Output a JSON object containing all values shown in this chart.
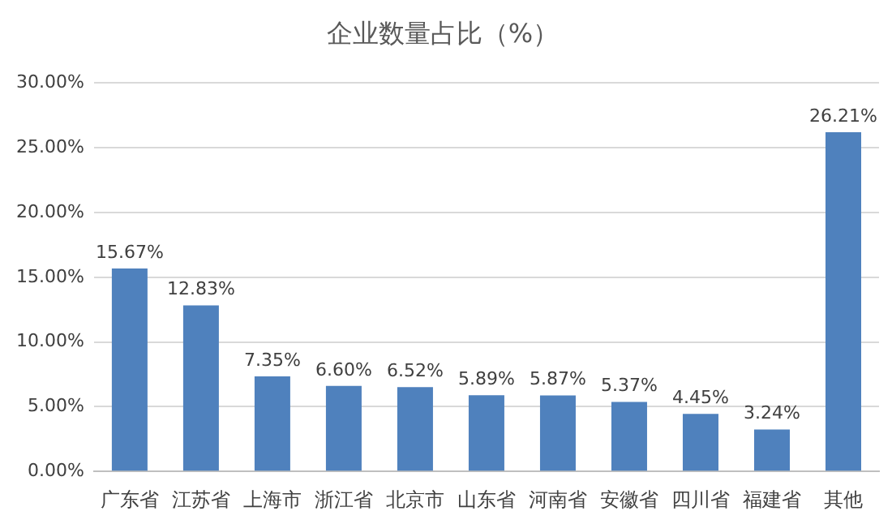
{
  "chart_data": {
    "type": "bar",
    "title": "企业数量占比（%）",
    "categories": [
      "广东省",
      "江苏省",
      "上海市",
      "浙江省",
      "北京市",
      "山东省",
      "河南省",
      "安徽省",
      "四川省",
      "福建省",
      "其他"
    ],
    "values": [
      15.67,
      12.83,
      7.35,
      6.6,
      6.52,
      5.89,
      5.87,
      5.37,
      4.45,
      3.24,
      26.21
    ],
    "value_labels": [
      "15.67%",
      "12.83%",
      "7.35%",
      "6.60%",
      "6.52%",
      "5.89%",
      "5.87%",
      "5.37%",
      "4.45%",
      "3.24%",
      "26.21%"
    ],
    "color": "#4f81bd",
    "ylim": [
      0,
      30
    ],
    "yticks": [
      {
        "value": 0,
        "label": "0.00%"
      },
      {
        "value": 5,
        "label": "5.00%"
      },
      {
        "value": 10,
        "label": "10.00%"
      },
      {
        "value": 15,
        "label": "15.00%"
      },
      {
        "value": 20,
        "label": "20.00%"
      },
      {
        "value": 25,
        "label": "25.00%"
      },
      {
        "value": 30,
        "label": "30.00%"
      }
    ],
    "grid": "y",
    "legend": false
  }
}
